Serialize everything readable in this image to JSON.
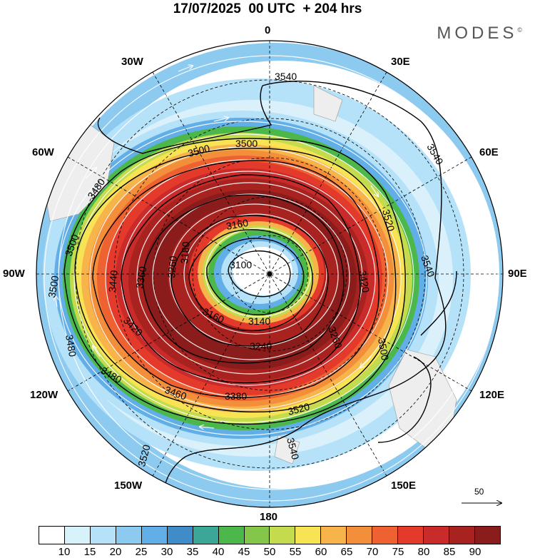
{
  "title": "17/07/2025  00 UTC  + 204 hrs",
  "logo": "MODES",
  "logo_mark": "©",
  "longitude_labels": {
    "n": "0",
    "s": "180",
    "e": "90E",
    "w": "90W",
    "ne30": "30E",
    "ne60": "60E",
    "nw30": "30W",
    "nw60": "60W",
    "se120": "120E",
    "se150": "150E",
    "sw120": "120W",
    "sw150": "150W"
  },
  "reference_vector": "50",
  "colorbar": {
    "colors": [
      "#ffffff",
      "#d8f2fc",
      "#b5e2f8",
      "#8ccaf0",
      "#62aee6",
      "#3f8cc9",
      "#3ba797",
      "#4cb74a",
      "#83c64a",
      "#c4db4e",
      "#f8e354",
      "#f7b44a",
      "#f38e3b",
      "#ee6130",
      "#e43a2c",
      "#c92a2a",
      "#a8221f",
      "#8b1c1c"
    ],
    "labels": [
      "10",
      "15",
      "20",
      "25",
      "30",
      "35",
      "40",
      "45",
      "50",
      "55",
      "60",
      "65",
      "70",
      "75",
      "80",
      "85",
      "90"
    ]
  },
  "contour_labels": {
    "c3540a": "3540",
    "c3540b": "3540",
    "c3540c": "3540",
    "c3540d": "3540",
    "c3520a": "3520",
    "c3520b": "3520",
    "c3520c": "3520",
    "c3500a": "3500",
    "c3500b": "3500",
    "c3500c": "3500",
    "c3500d": "3500",
    "c3500e": "3500",
    "c3480a": "3480",
    "c3480b": "3480",
    "c3480c": "3480",
    "c3460": "3460",
    "c3440": "3440",
    "c3420a": "3420",
    "c3420b": "3420",
    "c3380": "3380",
    "c3360": "3360",
    "c3260a": "3260",
    "c3260b": "3260",
    "c3240": "3240",
    "c3180": "3180",
    "c3160a": "3160",
    "c3160b": "3160",
    "c3140": "3140",
    "c3100": "3100"
  }
}
